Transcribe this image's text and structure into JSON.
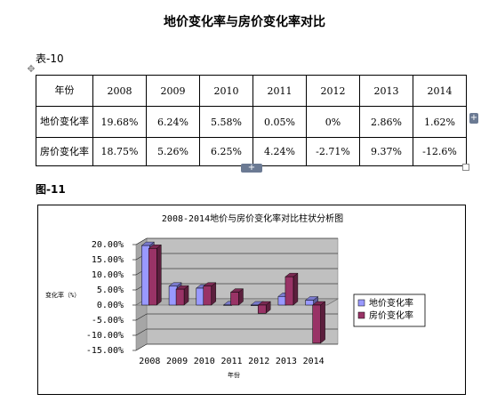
{
  "document": {
    "title": "地价变化率与房价变化率对比",
    "table_caption": "表-10",
    "figure_caption": "图-11"
  },
  "table": {
    "header": [
      "年份",
      "2008",
      "2009",
      "2010",
      "2011",
      "2012",
      "2013",
      "2014"
    ],
    "rows": [
      {
        "label": "地价变化率",
        "cells": [
          "19.68%",
          "6.24%",
          "5.58%",
          "0.05%",
          "0%",
          "2.86%",
          "1.62%"
        ]
      },
      {
        "label": "房价变化率",
        "cells": [
          "18.75%",
          "5.26%",
          "6.25%",
          "4.24%",
          "-2.71%",
          "9.37%",
          "-12.6%"
        ]
      }
    ]
  },
  "editor": {
    "move_handle_icon": "move-cross-icon",
    "add_icon_glyph": "+"
  },
  "chart_data": {
    "type": "bar",
    "title": "2008-2014地价与房价变化率对比柱状分析图",
    "xlabel": "年份",
    "ylabel": "变化率（%）",
    "categories": [
      "2008",
      "2009",
      "2010",
      "2011",
      "2012",
      "2013",
      "2014"
    ],
    "series": [
      {
        "name": "地价变化率",
        "values": [
          19.68,
          6.24,
          5.58,
          0.05,
          0,
          2.86,
          1.62
        ],
        "color": "#9999ff"
      },
      {
        "name": "房价变化率",
        "values": [
          18.75,
          5.26,
          6.25,
          4.24,
          -2.71,
          9.37,
          -12.6
        ],
        "color": "#993366"
      }
    ],
    "ylim": [
      -15,
      20
    ],
    "yticks": [
      "20.00%",
      "15.00%",
      "10.00%",
      "5.00%",
      "0.00%",
      "-5.00%",
      "-10.00%",
      "-15.00%"
    ],
    "ytick_values": [
      20,
      15,
      10,
      5,
      0,
      -5,
      -10,
      -15
    ],
    "grid": true,
    "legend": "right",
    "chart_style": "3d-clustered-column",
    "wall_color": "#c0c0c0"
  }
}
